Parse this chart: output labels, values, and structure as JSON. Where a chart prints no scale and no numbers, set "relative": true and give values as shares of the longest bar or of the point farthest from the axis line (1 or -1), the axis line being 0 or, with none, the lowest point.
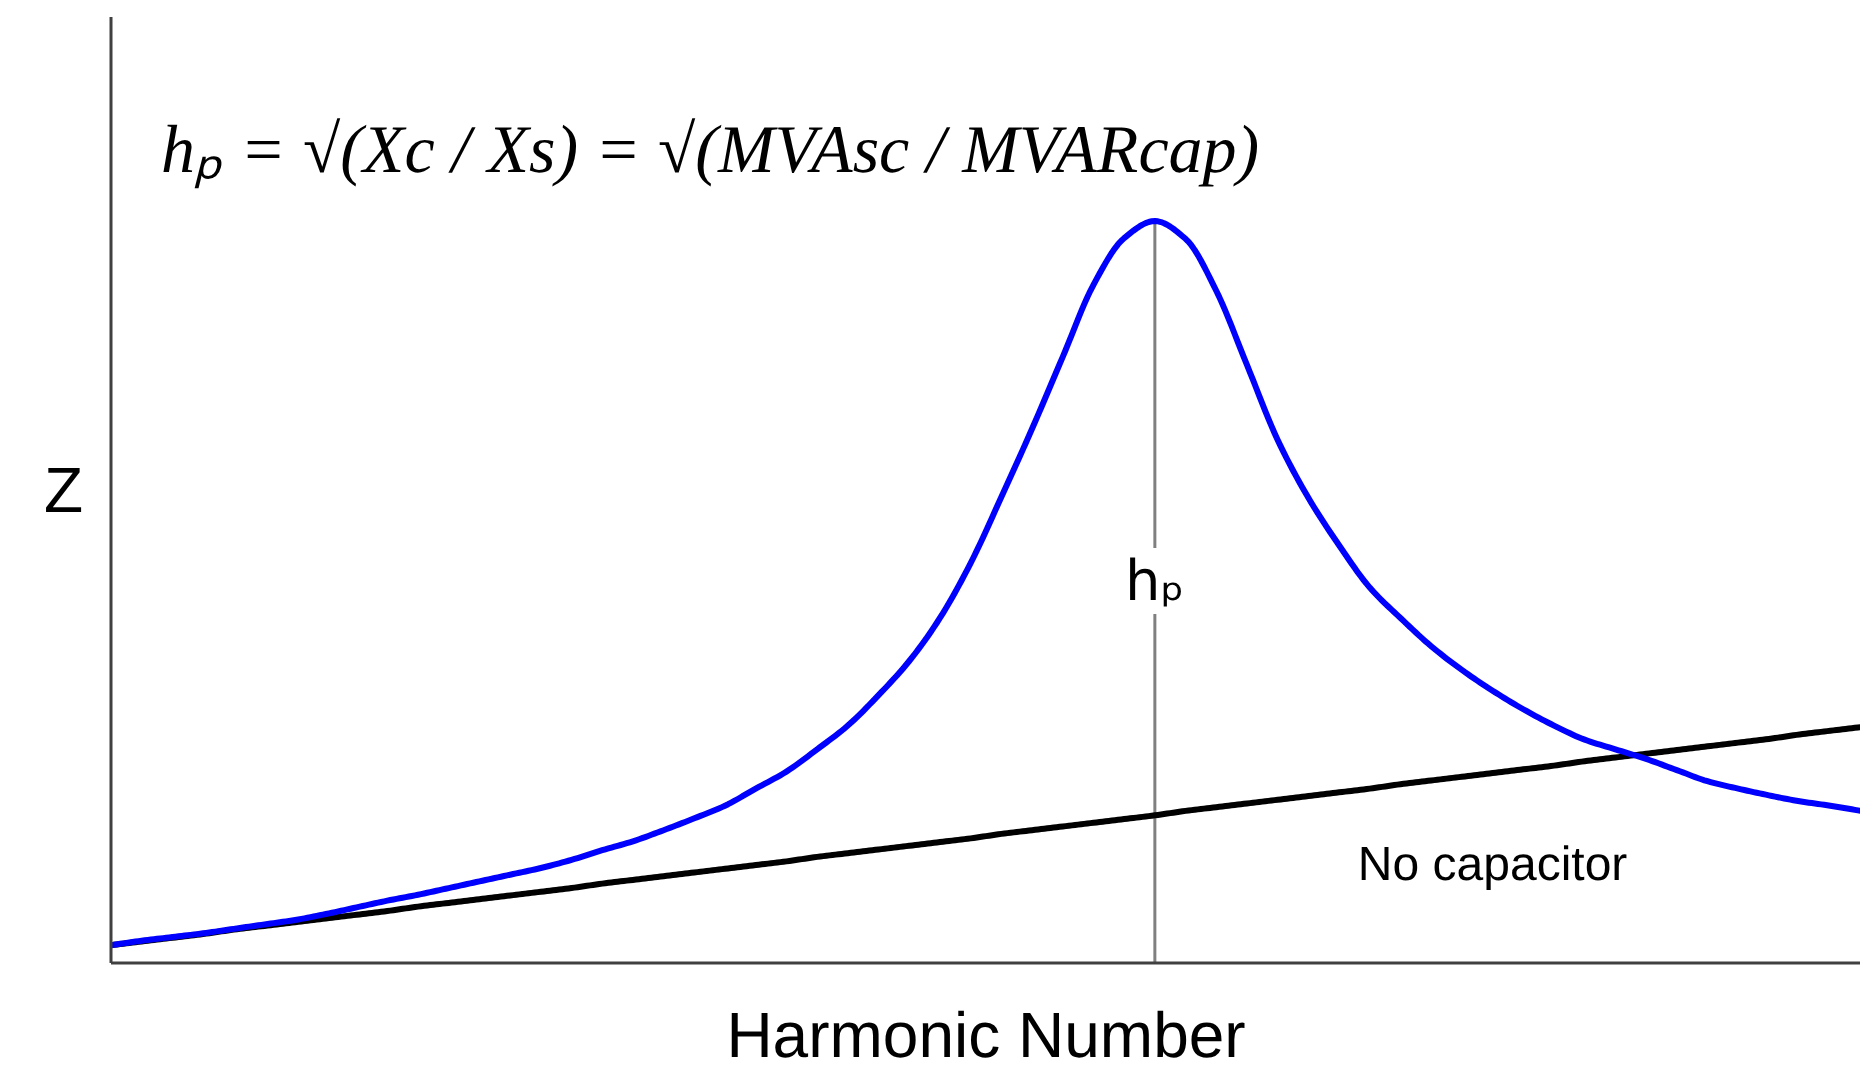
{
  "chart_data": {
    "type": "line",
    "relative": true,
    "legend": false,
    "xlabel": "Harmonic Number",
    "ylabel": "Z",
    "annotations": [
      "hₚ = √(Xc / Xs) = √(MVAsc / MVARcap)",
      "hₚ"
    ],
    "categories": [
      null,
      null,
      null,
      null,
      null,
      null,
      null,
      null,
      null,
      null,
      null,
      null,
      null,
      null,
      null,
      null,
      null,
      null,
      null,
      null,
      null,
      null,
      null,
      null,
      null,
      null,
      null,
      null,
      null,
      null,
      null,
      null,
      null,
      null,
      null,
      null,
      null,
      null,
      null,
      null,
      null,
      null,
      null,
      null,
      null,
      null,
      null,
      null,
      null,
      null,
      null,
      null,
      null,
      null,
      null,
      null,
      null,
      null
    ],
    "series": [
      {
        "name": "No capacitor",
        "color": "#000000",
        "values": [
          0.024,
          0.029,
          0.034,
          0.039,
          0.045,
          0.05,
          0.055,
          0.06,
          0.065,
          0.07,
          0.076,
          0.081,
          0.086,
          0.091,
          0.096,
          0.101,
          0.107,
          0.112,
          0.117,
          0.122,
          0.127,
          0.132,
          0.137,
          0.143,
          0.148,
          0.153,
          0.158,
          0.163,
          0.168,
          0.174,
          0.179,
          0.184,
          0.189,
          0.194,
          0.199,
          0.205,
          0.21,
          0.215,
          0.22,
          0.225,
          0.23,
          0.235,
          0.241,
          0.246,
          0.251,
          0.256,
          0.261,
          0.266,
          0.272,
          0.277,
          0.282,
          0.287,
          0.292,
          0.297,
          0.302,
          0.308,
          0.313,
          0.318
        ]
      },
      {
        "color": "#0000ff",
        "values": [
          0.024,
          0.03,
          0.035,
          0.04,
          0.046,
          0.052,
          0.058,
          0.066,
          0.075,
          0.084,
          0.092,
          0.101,
          0.11,
          0.119,
          0.128,
          0.139,
          0.152,
          0.164,
          0.179,
          0.195,
          0.212,
          0.235,
          0.258,
          0.288,
          0.32,
          0.361,
          0.407,
          0.465,
          0.539,
          0.628,
          0.72,
          0.817,
          0.914,
          0.977,
          1.0,
          0.976,
          0.906,
          0.806,
          0.705,
          0.627,
          0.563,
          0.506,
          0.465,
          0.427,
          0.395,
          0.367,
          0.342,
          0.32,
          0.301,
          0.288,
          0.275,
          0.26,
          0.245,
          0.235,
          0.226,
          0.218,
          0.212,
          0.205
        ]
      }
    ]
  }
}
